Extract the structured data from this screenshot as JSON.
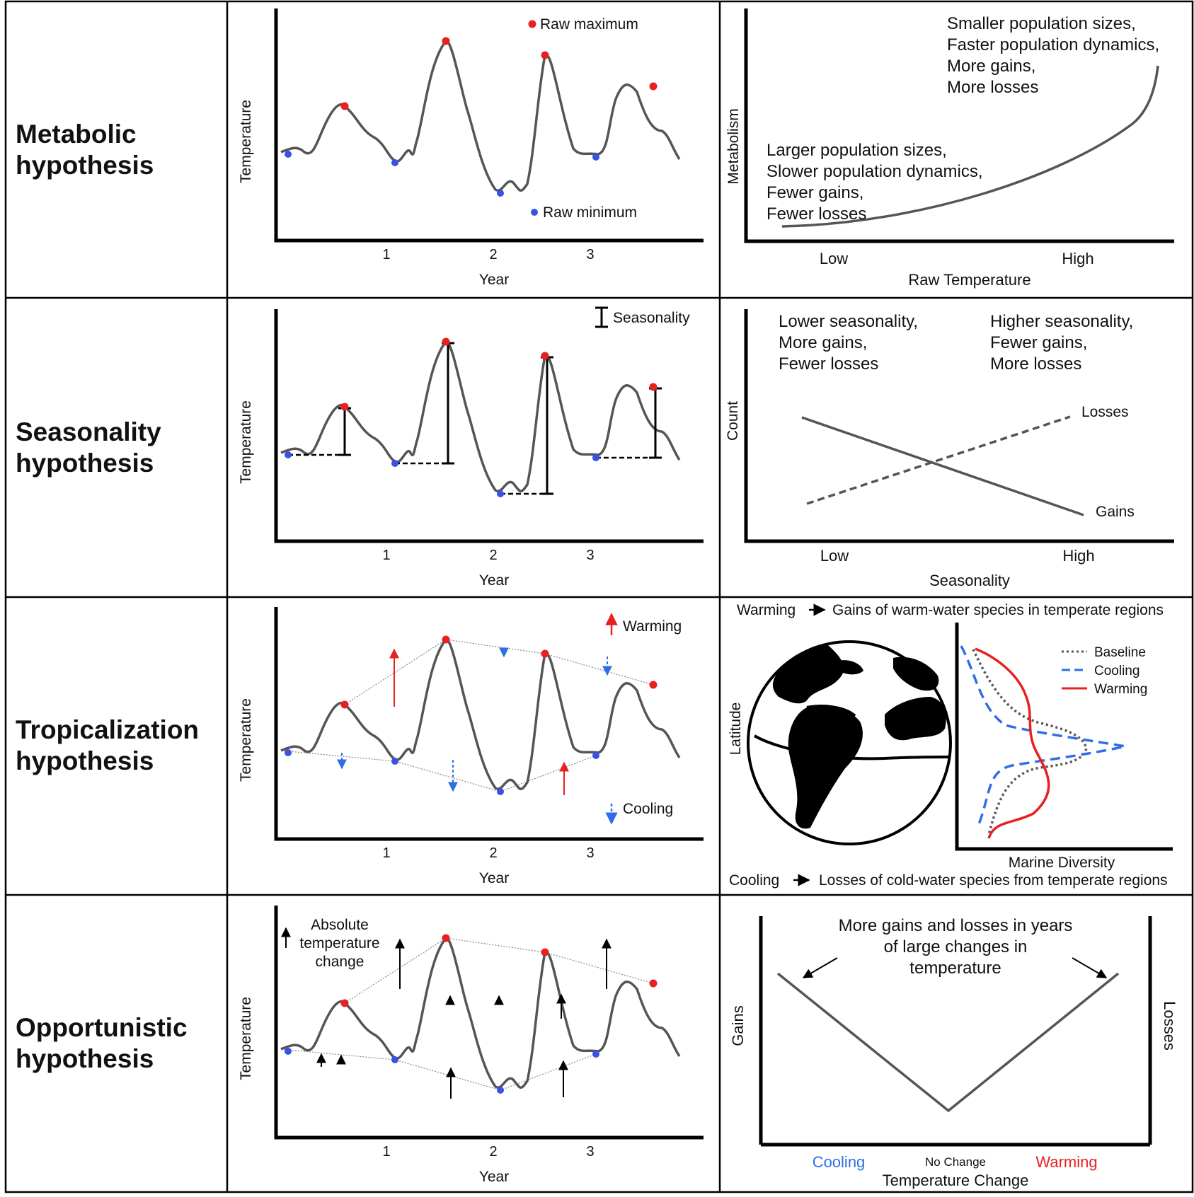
{
  "rows": [
    {
      "title_line1": "Metabolic",
      "title_line2": "hypothesis"
    },
    {
      "title_line1": "Seasonality",
      "title_line2": "hypothesis"
    },
    {
      "title_line1": "Tropicalization",
      "title_line2": "hypothesis"
    },
    {
      "title_line1": "Opportunistic",
      "title_line2": "hypothesis"
    }
  ],
  "left_axes": {
    "ylabel": "Temperature",
    "xlabel": "Year",
    "ticks": [
      "1",
      "2",
      "3"
    ]
  },
  "metabolic": {
    "legend_max": "Raw maximum",
    "legend_min": "Raw minimum",
    "right": {
      "ylabel": "Metabolism",
      "xlabel": "Raw Temperature",
      "x_low": "Low",
      "x_high": "High",
      "high_text": [
        "Smaller population sizes,",
        "Faster population dynamics,",
        "More gains,",
        "More losses"
      ],
      "low_text": [
        "Larger population sizes,",
        "Slower population dynamics,",
        "Fewer gains,",
        "Fewer losses"
      ]
    }
  },
  "seasonality": {
    "legend": "Seasonality",
    "right": {
      "ylabel": "Count",
      "xlabel": "Seasonality",
      "x_low": "Low",
      "x_high": "High",
      "low_text": [
        "Lower seasonality,",
        "More gains,",
        "Fewer losses"
      ],
      "high_text": [
        "Higher seasonality,",
        "Fewer gains,",
        "More losses"
      ],
      "line_losses": "Losses",
      "line_gains": "Gains"
    }
  },
  "tropicalization": {
    "legend_warming": "Warming",
    "legend_cooling": "Cooling",
    "right": {
      "top_left": "Warming",
      "top_right": "Gains of warm-water species in temperate regions",
      "bottom_left": "Cooling",
      "bottom_right": "Losses of cold-water species from temperate regions",
      "ylabel": "Latitude",
      "xlabel": "Marine Diversity",
      "legend_baseline": "Baseline",
      "legend_cooling": "Cooling",
      "legend_warming": "Warming"
    }
  },
  "opportunistic": {
    "legend": [
      "Absolute",
      "temperature",
      "change"
    ],
    "right": {
      "annotation": [
        "More gains and losses in years",
        "of large changes in",
        "temperature"
      ],
      "ylabel_left": "Gains",
      "ylabel_right": "Losses",
      "xlabel": "Temperature Change",
      "x_cooling": "Cooling",
      "x_nochange": "No Change",
      "x_warming": "Warming"
    }
  },
  "colors": {
    "max_point": "#e82020",
    "min_point": "#3a50e6",
    "curve": "#555555",
    "cooling": "#2f6ee8",
    "warming": "#e82020"
  }
}
